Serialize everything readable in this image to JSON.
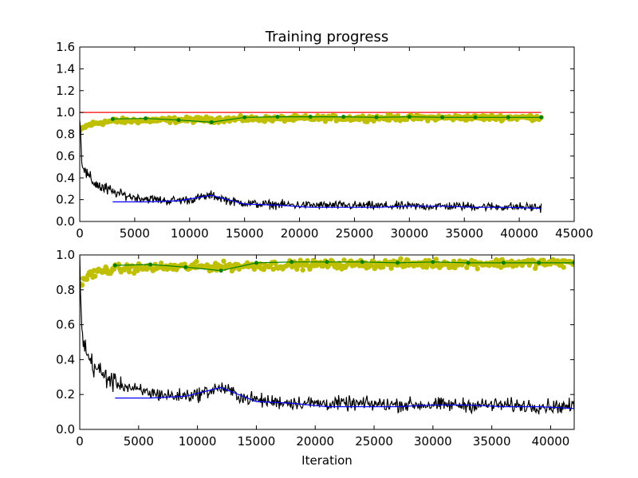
{
  "chart_data": [
    {
      "type": "line",
      "title": "Training progress",
      "xlabel": "",
      "ylabel": "",
      "xlim": [
        0,
        45000
      ],
      "ylim": [
        0.0,
        1.6
      ],
      "xticks": [
        "0",
        "5000",
        "10000",
        "15000",
        "20000",
        "25000",
        "30000",
        "35000",
        "40000",
        "45000"
      ],
      "yticks": [
        "0.0",
        "0.2",
        "0.4",
        "0.6",
        "0.8",
        "1.0",
        "1.2",
        "1.4",
        "1.6"
      ],
      "xtick_values": [
        0,
        5000,
        10000,
        15000,
        20000,
        25000,
        30000,
        35000,
        40000,
        45000
      ],
      "ytick_values": [
        0.0,
        0.2,
        0.4,
        0.6,
        0.8,
        1.0,
        1.2,
        1.4,
        1.6
      ],
      "grid": false,
      "series": [
        {
          "kind": "reference_line",
          "color": "#ff0000",
          "x": [
            0,
            42000
          ],
          "y": [
            1.0,
            1.0
          ]
        },
        {
          "kind": "noisy_markers",
          "color": "#bfbf00",
          "x": [
            0,
            500,
            1000,
            2000,
            3000,
            5000,
            8000,
            12000,
            16000,
            20000,
            25000,
            30000,
            35000,
            42000
          ],
          "y": [
            0.83,
            0.87,
            0.89,
            0.91,
            0.92,
            0.925,
            0.93,
            0.935,
            0.94,
            0.945,
            0.948,
            0.95,
            0.952,
            0.955
          ],
          "noise": 0.015,
          "count": 420
        },
        {
          "kind": "line_markers",
          "color": "#008000",
          "x": [
            3000,
            6000,
            9000,
            12000,
            15000,
            18000,
            21000,
            24000,
            27000,
            30000,
            33000,
            36000,
            39000,
            42000
          ],
          "y": [
            0.94,
            0.945,
            0.93,
            0.91,
            0.955,
            0.96,
            0.96,
            0.96,
            0.955,
            0.96,
            0.955,
            0.955,
            0.955,
            0.955
          ]
        },
        {
          "kind": "noisy_line",
          "color": "#000000",
          "x": [
            0,
            200,
            500,
            1000,
            2000,
            3000,
            5000,
            8000,
            10000,
            12000,
            14000,
            16000,
            20000,
            25000,
            30000,
            35000,
            42000
          ],
          "y": [
            0.95,
            0.55,
            0.45,
            0.38,
            0.31,
            0.27,
            0.22,
            0.19,
            0.2,
            0.24,
            0.18,
            0.16,
            0.15,
            0.145,
            0.14,
            0.14,
            0.13
          ],
          "noise": 0.025,
          "count": 700
        },
        {
          "kind": "line",
          "color": "#0000ff",
          "x": [
            3000,
            6000,
            9000,
            12000,
            15000,
            18000,
            21000,
            24000,
            27000,
            30000,
            33000,
            36000,
            39000,
            42000
          ],
          "y": [
            0.18,
            0.18,
            0.19,
            0.24,
            0.16,
            0.15,
            0.13,
            0.13,
            0.13,
            0.14,
            0.14,
            0.13,
            0.13,
            0.12
          ]
        }
      ]
    },
    {
      "type": "line",
      "title": "",
      "xlabel": "Iteration",
      "ylabel": "",
      "xlim": [
        0,
        42000
      ],
      "ylim": [
        0.0,
        1.0
      ],
      "xticks": [
        "0",
        "5000",
        "10000",
        "15000",
        "20000",
        "25000",
        "30000",
        "35000",
        "40000"
      ],
      "yticks": [
        "0.0",
        "0.2",
        "0.4",
        "0.6",
        "0.8",
        "1.0"
      ],
      "xtick_values": [
        0,
        5000,
        10000,
        15000,
        20000,
        25000,
        30000,
        35000,
        40000
      ],
      "ytick_values": [
        0.0,
        0.2,
        0.4,
        0.6,
        0.8,
        1.0
      ],
      "grid": false,
      "series": [
        {
          "kind": "noisy_markers",
          "color": "#bfbf00",
          "x": [
            0,
            500,
            1000,
            2000,
            3000,
            5000,
            8000,
            12000,
            16000,
            20000,
            25000,
            30000,
            35000,
            42000
          ],
          "y": [
            0.83,
            0.87,
            0.89,
            0.91,
            0.92,
            0.925,
            0.93,
            0.935,
            0.94,
            0.945,
            0.948,
            0.95,
            0.952,
            0.955
          ],
          "noise": 0.015,
          "count": 420
        },
        {
          "kind": "line_markers",
          "color": "#008000",
          "x": [
            3000,
            6000,
            9000,
            12000,
            15000,
            18000,
            21000,
            24000,
            27000,
            30000,
            33000,
            36000,
            39000,
            42000
          ],
          "y": [
            0.94,
            0.945,
            0.93,
            0.91,
            0.955,
            0.96,
            0.96,
            0.96,
            0.955,
            0.96,
            0.955,
            0.955,
            0.955,
            0.955
          ]
        },
        {
          "kind": "noisy_line",
          "color": "#000000",
          "x": [
            0,
            200,
            500,
            1000,
            2000,
            3000,
            5000,
            8000,
            10000,
            12000,
            14000,
            16000,
            20000,
            25000,
            30000,
            35000,
            42000
          ],
          "y": [
            0.95,
            0.55,
            0.45,
            0.38,
            0.31,
            0.27,
            0.22,
            0.19,
            0.2,
            0.24,
            0.18,
            0.16,
            0.15,
            0.145,
            0.14,
            0.14,
            0.13
          ],
          "noise": 0.025,
          "count": 700
        },
        {
          "kind": "line",
          "color": "#0000ff",
          "x": [
            3000,
            6000,
            9000,
            12000,
            15000,
            18000,
            21000,
            24000,
            27000,
            30000,
            33000,
            36000,
            39000,
            42000
          ],
          "y": [
            0.18,
            0.18,
            0.19,
            0.24,
            0.16,
            0.15,
            0.13,
            0.13,
            0.13,
            0.14,
            0.14,
            0.13,
            0.13,
            0.12
          ]
        }
      ]
    }
  ]
}
